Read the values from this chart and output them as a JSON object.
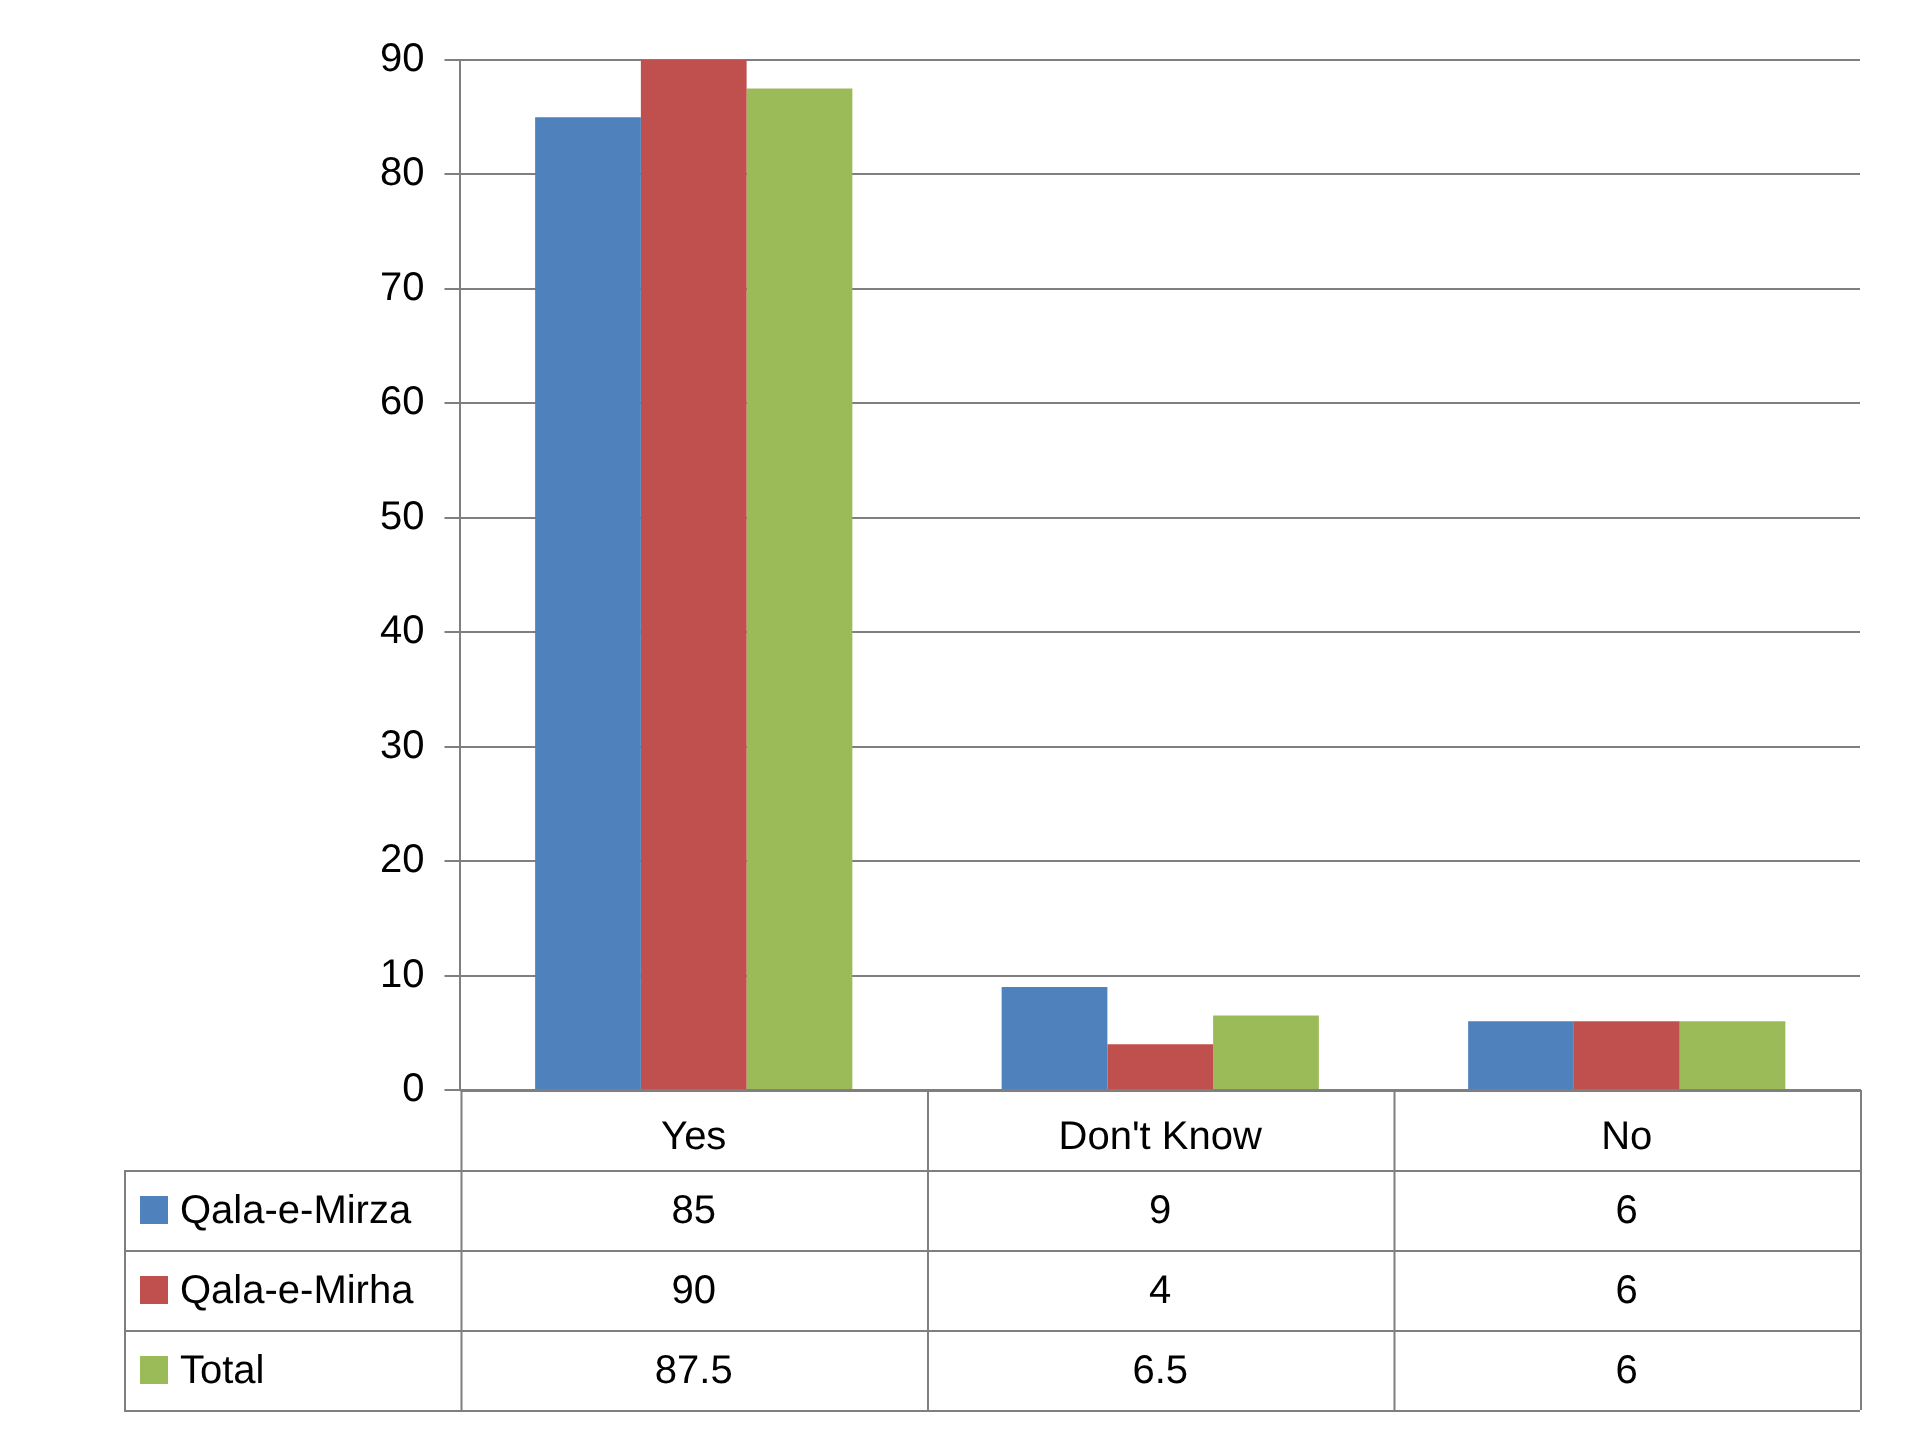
{
  "chart_data": {
    "type": "bar",
    "categories": [
      "Yes",
      "Don't Know",
      "No"
    ],
    "series": [
      {
        "name": "Qala-e-Mirza",
        "color": "#4f81bd",
        "values": [
          85,
          9,
          6
        ]
      },
      {
        "name": "Qala-e-Mirha",
        "color": "#c0504d",
        "values": [
          90,
          4,
          6
        ]
      },
      {
        "name": "Total",
        "color": "#9bbb59",
        "values": [
          87.5,
          6.5,
          6
        ]
      }
    ],
    "ylim": [
      0,
      90
    ],
    "yticks": [
      0,
      10,
      20,
      30,
      40,
      50,
      60,
      70,
      80,
      90
    ],
    "grid": "y",
    "legend": "bottom",
    "data_labels": true
  }
}
